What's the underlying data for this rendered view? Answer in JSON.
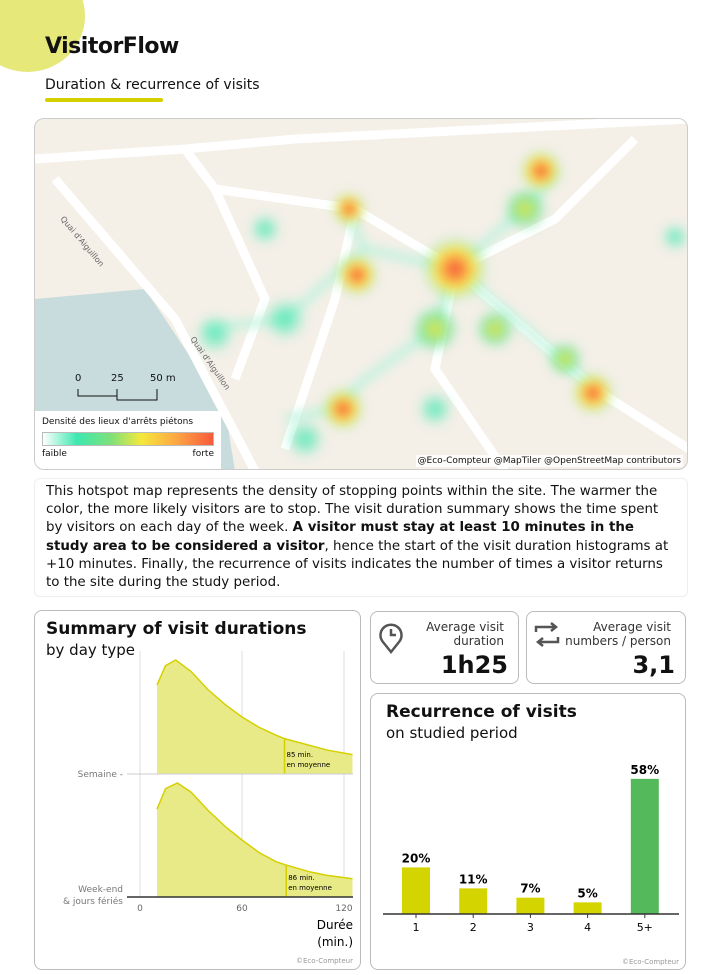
{
  "header": {
    "title": "VisitorFlow",
    "subtitle": "Duration & recurrence of visits"
  },
  "map": {
    "scale_labels": [
      "0",
      "25",
      "50 m"
    ],
    "street_labels": [
      "Quai d'Aiguillon",
      "Quai d'Aiguillon"
    ],
    "legend": {
      "title": "Densité des lieux d'arrêts piétons",
      "low": "faible",
      "high": "forte"
    },
    "credit": "@Eco-Compteur @MapTiler @OpenStreetMap contributors"
  },
  "description": {
    "text1": "This hotspot map represents the density of stopping points within the site. The warmer the color, the more likely visitors are to stop. The visit duration summary shows the time spent by visitors on each day of the week. ",
    "bold": "A visitor must stay at least 10 minutes in the study area to be considered a visitor",
    "text2": ", hence the start of the visit duration histograms at +10 minutes. Finally, the recurrence of visits indicates the number of times a visitor returns to the site during the study period."
  },
  "kpis": [
    {
      "label": "Average visit duration",
      "value": "1h25",
      "icon": "clock-pin-icon"
    },
    {
      "label": "Average visit numbers / person",
      "value": "3,1",
      "icon": "repeat-arrows-icon"
    }
  ],
  "colors": {
    "accent": "#d5d000",
    "fill": "#e8ea88",
    "bar_yellow": "#d4d400",
    "bar_green": "#54b95a"
  },
  "chart_data": [
    {
      "type": "area",
      "title": "Summary of visit durations",
      "subtitle": "by day type",
      "xlabel": "Durée (min.)",
      "xticks": [
        "0",
        "60",
        "120"
      ],
      "xlim": [
        0,
        125
      ],
      "credit": "©Eco-Compteur",
      "series": [
        {
          "name": "Semaine",
          "x": [
            10,
            15,
            21,
            30,
            40,
            50,
            60,
            70,
            80,
            85,
            100,
            110,
            125
          ],
          "y": [
            0.78,
            0.95,
            1.0,
            0.9,
            0.74,
            0.61,
            0.5,
            0.41,
            0.34,
            0.31,
            0.25,
            0.21,
            0.17
          ],
          "mean_label": "85 min.",
          "mean_sub": "en moyenne",
          "mean": 85
        },
        {
          "name": "Week-end & jours fériés",
          "x": [
            10,
            15,
            22,
            30,
            40,
            50,
            60,
            70,
            80,
            86,
            100,
            110,
            125
          ],
          "y": [
            0.77,
            0.95,
            1.0,
            0.92,
            0.76,
            0.62,
            0.5,
            0.39,
            0.31,
            0.28,
            0.22,
            0.19,
            0.16
          ],
          "mean_label": "86 min.",
          "mean_sub": "en moyenne",
          "mean": 86
        }
      ]
    },
    {
      "type": "bar",
      "title": "Recurrence of visits",
      "subtitle": "on studied period",
      "categories": [
        "1",
        "2",
        "3",
        "4",
        "5+"
      ],
      "values": [
        20,
        11,
        7,
        5,
        58
      ],
      "labels": [
        "20%",
        "11%",
        "7%",
        "5%",
        "58%"
      ],
      "credit": "©Eco-Compteur"
    }
  ]
}
